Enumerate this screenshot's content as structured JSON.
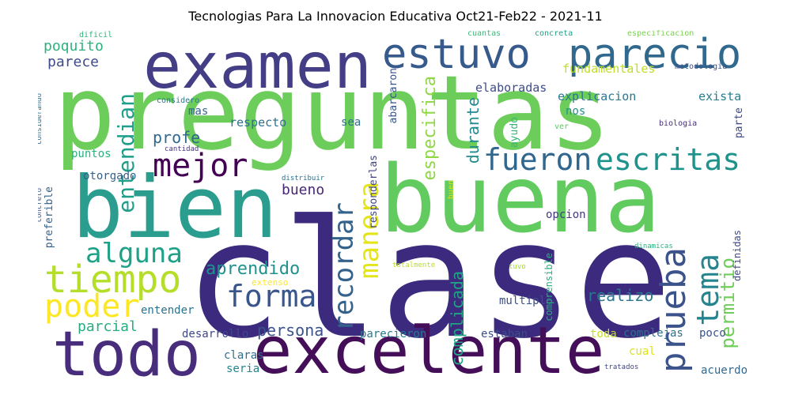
{
  "title": "Tecnologias Para La Innovacion Educativa Oct21-Feb22 - 2021-11",
  "words": [
    {
      "text": "preguntas",
      "color": "#6ccd5a"
    },
    {
      "text": "clase",
      "color": "#3b2a7d"
    },
    {
      "text": "buena",
      "color": "#62cb5f"
    },
    {
      "text": "bien",
      "color": "#2a9d8f"
    },
    {
      "text": "examen",
      "color": "#433e85"
    },
    {
      "text": "estuvo",
      "color": "#375a8c"
    },
    {
      "text": "parecio",
      "color": "#31688e"
    },
    {
      "text": "todo",
      "color": "#472d7b"
    },
    {
      "text": "excelente",
      "color": "#440f58"
    },
    {
      "text": "tiempo",
      "color": "#b5de2b"
    },
    {
      "text": "fueron",
      "color": "#31668e"
    },
    {
      "text": "escritas",
      "color": "#20928c"
    },
    {
      "text": "mejor",
      "color": "#440154"
    },
    {
      "text": "prueba",
      "color": "#3b528b"
    },
    {
      "text": "alguna",
      "color": "#1fa187"
    },
    {
      "text": "forma",
      "color": "#39568c"
    },
    {
      "text": "tema",
      "color": "#25858e"
    },
    {
      "text": "poder",
      "color": "#fde725"
    },
    {
      "text": "recordar",
      "color": "#33638d"
    },
    {
      "text": "manera",
      "color": "#e5e419"
    },
    {
      "text": "entendian",
      "color": "#1f9e89"
    },
    {
      "text": "aprendido",
      "color": "#21918c"
    },
    {
      "text": "persona",
      "color": "#3b528b"
    },
    {
      "text": "permitio",
      "color": "#6ece58"
    },
    {
      "text": "especifica",
      "color": "#8fd744"
    },
    {
      "text": "complicada",
      "color": "#21a585"
    },
    {
      "text": "poquito",
      "color": "#2db27d"
    },
    {
      "text": "parece",
      "color": "#3e4a89"
    },
    {
      "text": "profe",
      "color": "#31688e"
    },
    {
      "text": "bueno",
      "color": "#482576"
    },
    {
      "text": "parcial",
      "color": "#27ad81"
    },
    {
      "text": "realizo",
      "color": "#2a788e"
    },
    {
      "text": "durante",
      "color": "#238a8d"
    },
    {
      "text": "explicacion",
      "color": "#2a778e"
    },
    {
      "text": "exista",
      "color": "#287c8e"
    },
    {
      "text": "elaboradas",
      "color": "#3e4c8a"
    },
    {
      "text": "fundamentales",
      "color": "#bddf26"
    },
    {
      "text": "respecto",
      "color": "#2c718e"
    },
    {
      "text": "sea",
      "color": "#2d708e"
    },
    {
      "text": "nos",
      "color": "#218f8d"
    },
    {
      "text": "mas",
      "color": "#32658e"
    },
    {
      "text": "puntos",
      "color": "#2ab07f"
    },
    {
      "text": "otorgado",
      "color": "#355f8d"
    },
    {
      "text": "opcion",
      "color": "#443983"
    },
    {
      "text": "multiple",
      "color": "#3b518b"
    },
    {
      "text": "entender",
      "color": "#2c728e"
    },
    {
      "text": "desarrollo",
      "color": "#3f4889"
    },
    {
      "text": "parecieron",
      "color": "#2a788e"
    },
    {
      "text": "estaban",
      "color": "#3d4d8a"
    },
    {
      "text": "toda",
      "color": "#c2df23"
    },
    {
      "text": "complejas",
      "color": "#2d708e"
    },
    {
      "text": "poco",
      "color": "#3b528b"
    },
    {
      "text": "claras",
      "color": "#2e6f8e"
    },
    {
      "text": "seria",
      "color": "#24868e"
    },
    {
      "text": "cual",
      "color": "#dde318"
    },
    {
      "text": "acuerdo",
      "color": "#31688e"
    },
    {
      "text": "ayudo",
      "color": "#35b779"
    },
    {
      "text": "ver",
      "color": "#5ec962"
    },
    {
      "text": "biologia",
      "color": "#472d7b"
    },
    {
      "text": "parte",
      "color": "#3e4989"
    },
    {
      "text": "metodologia",
      "color": "#3b528b"
    },
    {
      "text": "especificacion",
      "color": "#7ad151"
    },
    {
      "text": "concreta",
      "color": "#1fa088"
    },
    {
      "text": "cuantas",
      "color": "#38b977"
    },
    {
      "text": "dificil",
      "color": "#2fb47c"
    },
    {
      "text": "considero",
      "color": "#2a788e"
    },
    {
      "text": "cantidad",
      "color": "#46327e"
    },
    {
      "text": "distribuir",
      "color": "#2c718e"
    },
    {
      "text": "considerando",
      "color": "#2e6e8e"
    },
    {
      "text": "concreto",
      "color": "#3a548c"
    },
    {
      "text": "preferible",
      "color": "#33638d"
    },
    {
      "text": "abarcaron",
      "color": "#3b528b"
    },
    {
      "text": "responderlas",
      "color": "#414487"
    },
    {
      "text": "buen",
      "color": "#d8e219"
    },
    {
      "text": "extenso",
      "color": "#fde725"
    },
    {
      "text": "totalmente",
      "color": "#b8de29"
    },
    {
      "text": "tuvo",
      "color": "#a5db36"
    },
    {
      "text": "comprensible",
      "color": "#29af7f"
    },
    {
      "text": "dinamicas",
      "color": "#2db27d"
    },
    {
      "text": "definidas",
      "color": "#3e4a89"
    },
    {
      "text": "tratados",
      "color": "#414487"
    }
  ]
}
